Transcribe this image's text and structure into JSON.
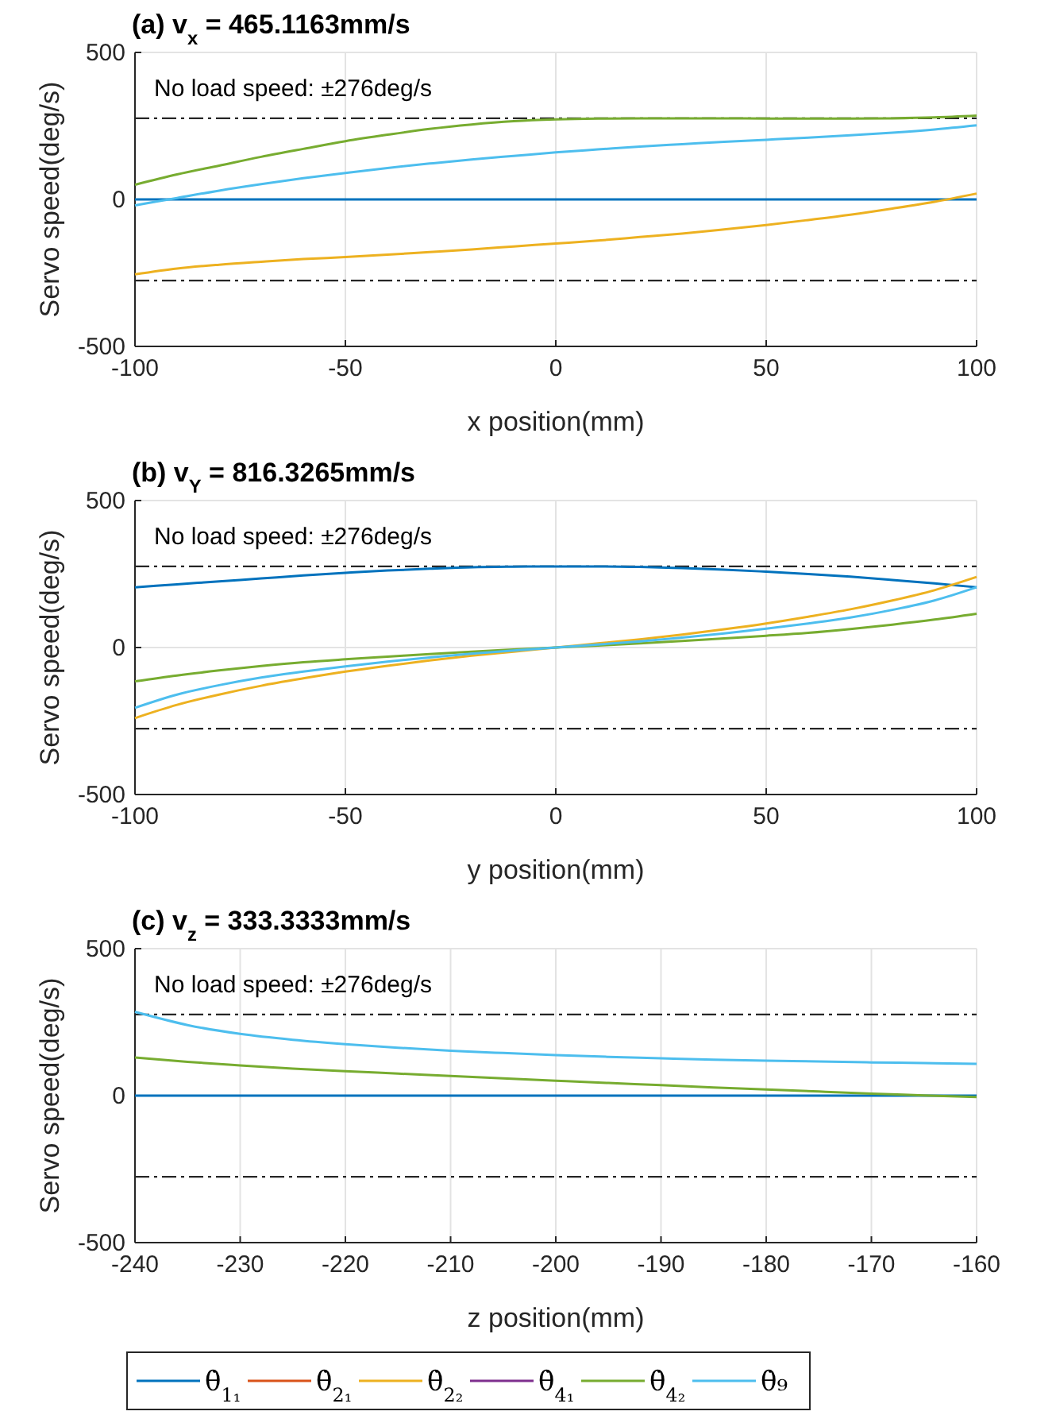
{
  "chart_data": [
    {
      "type": "line",
      "title": "(a) v$_{x}$ = 465.1163mm/s",
      "xlabel": "x position(mm)",
      "ylabel": "Servo speed(deg/s)",
      "x": [
        -100,
        -90,
        -80,
        -70,
        -60,
        -50,
        -40,
        -30,
        -20,
        -10,
        0,
        10,
        20,
        30,
        40,
        50,
        60,
        70,
        80,
        90,
        100
      ],
      "xlim": [
        -100,
        100
      ],
      "xticks": [
        -100,
        -50,
        0,
        50,
        100
      ],
      "ylim": [
        -500,
        500
      ],
      "yticks": [
        -500,
        0,
        500
      ],
      "grid": true,
      "legend": false,
      "ref_lines": [
        {
          "axis": "y",
          "value": 276,
          "label": "No load speed: ±276deg/s",
          "line_style": "dashed",
          "color": "#262626"
        },
        {
          "axis": "y",
          "value": -276,
          "line_style": "dashed",
          "color": "#262626"
        }
      ],
      "series": [
        {
          "color": "#0072bd",
          "values": [
            0,
            0,
            0,
            0,
            0,
            0,
            0,
            0,
            0,
            0,
            0,
            0,
            0,
            0,
            0,
            0,
            0,
            0,
            0,
            0,
            0
          ]
        },
        {
          "color": "#edb120",
          "values": [
            -255,
            -235,
            -222,
            -212,
            -203,
            -196,
            -188,
            -179,
            -170,
            -160,
            -150,
            -140,
            -128,
            -116,
            -102,
            -87,
            -70,
            -52,
            -31,
            -8,
            20
          ]
        },
        {
          "color": "#77ac30",
          "values": [
            50,
            85,
            115,
            145,
            172,
            198,
            220,
            240,
            255,
            266,
            272,
            275,
            276,
            276,
            276,
            275,
            275,
            275,
            276,
            279,
            285
          ]
        },
        {
          "color": "#4dbeee",
          "values": [
            -20,
            5,
            30,
            52,
            72,
            90,
            107,
            122,
            136,
            148,
            160,
            170,
            180,
            188,
            196,
            203,
            210,
            218,
            227,
            238,
            252
          ]
        }
      ]
    },
    {
      "type": "line",
      "title": "(b) v$_{Y}$ = 816.3265mm/s",
      "xlabel": "y position(mm)",
      "ylabel": "Servo speed(deg/s)",
      "x": [
        -100,
        -90,
        -80,
        -70,
        -60,
        -50,
        -40,
        -30,
        -20,
        -10,
        0,
        10,
        20,
        30,
        40,
        50,
        60,
        70,
        80,
        90,
        100
      ],
      "xlim": [
        -100,
        100
      ],
      "xticks": [
        -100,
        -50,
        0,
        50,
        100
      ],
      "ylim": [
        -500,
        500
      ],
      "yticks": [
        -500,
        0,
        500
      ],
      "grid": true,
      "legend": false,
      "ref_lines": [
        {
          "axis": "y",
          "value": 276,
          "label": "No load speed: ±276deg/s",
          "line_style": "dashed",
          "color": "#262626"
        },
        {
          "axis": "y",
          "value": -276,
          "line_style": "dashed",
          "color": "#262626"
        }
      ],
      "series": [
        {
          "color": "#0072bd",
          "values": [
            205,
            215,
            225,
            235,
            245,
            254,
            262,
            268,
            273,
            275,
            276,
            276,
            274,
            270,
            265,
            258,
            250,
            241,
            230,
            218,
            205
          ]
        },
        {
          "color": "#edb120",
          "values": [
            -240,
            -195,
            -160,
            -130,
            -105,
            -82,
            -62,
            -44,
            -28,
            -14,
            0,
            14,
            28,
            44,
            62,
            82,
            105,
            130,
            160,
            195,
            240
          ]
        },
        {
          "color": "#77ac30",
          "values": [
            -115,
            -95,
            -78,
            -63,
            -50,
            -40,
            -31,
            -22,
            -14,
            -7,
            0,
            7,
            14,
            22,
            31,
            40,
            50,
            63,
            78,
            95,
            115
          ]
        },
        {
          "color": "#4dbeee",
          "values": [
            -205,
            -160,
            -128,
            -102,
            -82,
            -64,
            -48,
            -34,
            -21,
            -10,
            0,
            10,
            21,
            34,
            48,
            64,
            82,
            102,
            128,
            160,
            205
          ]
        }
      ]
    },
    {
      "type": "line",
      "title": "(c) v$_{z}$ = 333.3333mm/s",
      "xlabel": "z position(mm)",
      "ylabel": "Servo speed(deg/s)",
      "x": [
        -240,
        -235,
        -230,
        -225,
        -220,
        -215,
        -210,
        -205,
        -200,
        -195,
        -190,
        -185,
        -180,
        -175,
        -170,
        -165,
        -160
      ],
      "xlim": [
        -240,
        -160
      ],
      "xticks": [
        -240,
        -230,
        -220,
        -210,
        -200,
        -190,
        -180,
        -170,
        -160
      ],
      "ylim": [
        -500,
        500
      ],
      "yticks": [
        -500,
        0,
        500
      ],
      "grid": true,
      "legend": "bottom",
      "ref_lines": [
        {
          "axis": "y",
          "value": 276,
          "label": "No load speed: ±276deg/s",
          "line_style": "dashed",
          "color": "#262626"
        },
        {
          "axis": "y",
          "value": -276,
          "line_style": "dashed",
          "color": "#262626"
        }
      ],
      "series": [
        {
          "name": "θ̇$_{1₁}$",
          "color": "#0072bd",
          "values": [
            0,
            0,
            0,
            0,
            0,
            0,
            0,
            0,
            0,
            0,
            0,
            0,
            0,
            0,
            0,
            0,
            0
          ]
        },
        {
          "name": "θ̇$_{2₁}$",
          "color": "#d95319",
          "values": [
            null,
            null,
            null,
            null,
            null,
            null,
            null,
            null,
            null,
            null,
            null,
            null,
            null,
            null,
            null,
            null,
            null
          ]
        },
        {
          "name": "θ̇$_{2₂}$",
          "color": "#edb120",
          "values": [
            null,
            null,
            null,
            null,
            null,
            null,
            null,
            null,
            null,
            null,
            null,
            null,
            null,
            null,
            null,
            null,
            null
          ]
        },
        {
          "name": "θ̇$_{4₁}$",
          "color": "#7e2f8e",
          "values": [
            null,
            null,
            null,
            null,
            null,
            null,
            null,
            null,
            null,
            null,
            null,
            null,
            null,
            null,
            null,
            null,
            null
          ]
        },
        {
          "name": "θ̇$_{4₂}$",
          "color": "#77ac30",
          "values": [
            130,
            115,
            103,
            92,
            83,
            75,
            67,
            59,
            51,
            43,
            36,
            28,
            21,
            14,
            7,
            1,
            -5
          ]
        },
        {
          "name": "θ̇₉",
          "color": "#4dbeee",
          "values": [
            285,
            240,
            210,
            190,
            175,
            163,
            153,
            145,
            138,
            132,
            127,
            122,
            119,
            116,
            113,
            111,
            108
          ]
        }
      ]
    }
  ]
}
